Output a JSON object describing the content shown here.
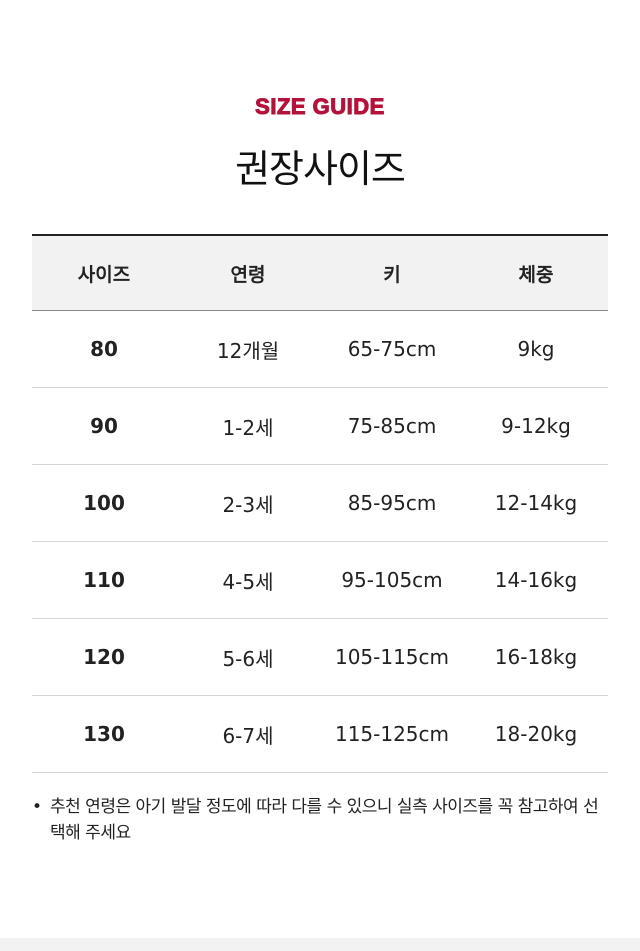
{
  "header": {
    "eyebrow": "SIZE GUIDE",
    "title": "권장사이즈",
    "accent_color": "#b5123b"
  },
  "table": {
    "columns": [
      "사이즈",
      "연령",
      "키",
      "체중"
    ],
    "rows": [
      [
        "80",
        "12개월",
        "65-75cm",
        "9kg"
      ],
      [
        "90",
        "1-2세",
        "75-85cm",
        "9-12kg"
      ],
      [
        "100",
        "2-3세",
        "85-95cm",
        "12-14kg"
      ],
      [
        "110",
        "4-5세",
        "95-105cm",
        "14-16kg"
      ],
      [
        "120",
        "5-6세",
        "105-115cm",
        "16-18kg"
      ],
      [
        "130",
        "6-7세",
        "115-125cm",
        "18-20kg"
      ]
    ]
  },
  "note": {
    "bullet": "•",
    "text": "추천 연령은 아기 발달 정도에 따라 다를 수 있으니 실측 사이즈를 꼭 참고하여 선택해 주세요"
  }
}
